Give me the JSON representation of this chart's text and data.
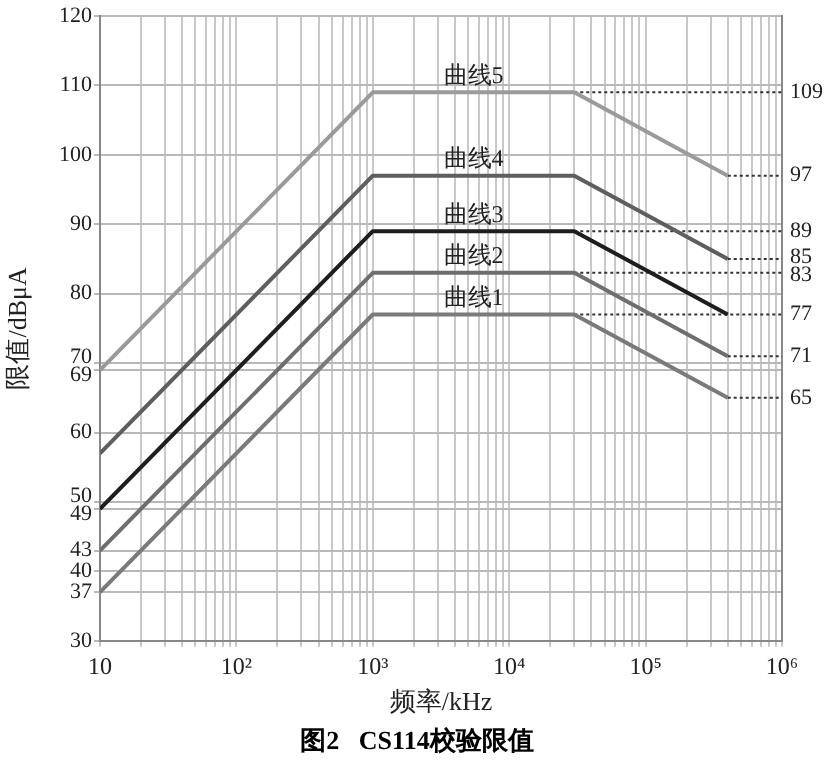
{
  "chart_data": {
    "type": "line",
    "title": "图2   CS114校验限值",
    "xlabel": "频率/kHz",
    "ylabel": "限值/dBμA",
    "log": "x",
    "grid": true,
    "legend": false,
    "marker": "none",
    "line_style": "solid",
    "xlim": [
      10,
      1000000
    ],
    "xticks": [
      10,
      {
        "value": 20,
        "label": null
      },
      {
        "value": 30,
        "label": null
      },
      {
        "value": 40,
        "label": null
      },
      {
        "value": 50,
        "label": null
      },
      {
        "value": 60,
        "label": null
      },
      {
        "value": 70,
        "label": null
      },
      {
        "value": 80,
        "label": null
      },
      {
        "value": 90,
        "label": null
      },
      {
        "value": 100,
        "label": "10²"
      },
      {
        "value": 200,
        "label": null
      },
      {
        "value": 300,
        "label": null
      },
      {
        "value": 400,
        "label": null
      },
      {
        "value": 500,
        "label": null
      },
      {
        "value": 600,
        "label": null
      },
      {
        "value": 700,
        "label": null
      },
      {
        "value": 800,
        "label": null
      },
      {
        "value": 900,
        "label": null
      },
      {
        "value": 1000,
        "label": "10³"
      },
      {
        "value": 2000,
        "label": null
      },
      {
        "value": 3000,
        "label": null
      },
      {
        "value": 4000,
        "label": null
      },
      {
        "value": 5000,
        "label": null
      },
      {
        "value": 6000,
        "label": null
      },
      {
        "value": 7000,
        "label": null
      },
      {
        "value": 8000,
        "label": null
      },
      {
        "value": 9000,
        "label": null
      },
      {
        "value": 10000,
        "label": "10⁴"
      },
      {
        "value": 20000,
        "label": null
      },
      {
        "value": 30000,
        "label": null
      },
      {
        "value": 40000,
        "label": null
      },
      {
        "value": 50000,
        "label": null
      },
      {
        "value": 60000,
        "label": null
      },
      {
        "value": 70000,
        "label": null
      },
      {
        "value": 80000,
        "label": null
      },
      {
        "value": 90000,
        "label": null
      },
      {
        "value": 100000,
        "label": "10⁵"
      },
      {
        "value": 200000,
        "label": null
      },
      {
        "value": 300000,
        "label": null
      },
      {
        "value": 400000,
        "label": null
      },
      {
        "value": 500000,
        "label": null
      },
      {
        "value": 600000,
        "label": null
      },
      {
        "value": 700000,
        "label": null
      },
      {
        "value": 800000,
        "label": null
      },
      {
        "value": 900000,
        "label": null
      },
      {
        "value": 1000000,
        "label": "10⁶"
      }
    ],
    "ylim": [
      30,
      120
    ],
    "yticks": [
      30,
      37,
      40,
      43,
      49,
      50,
      60,
      69,
      70,
      80,
      90,
      100,
      110,
      120
    ],
    "y2lim": [
      30,
      120
    ],
    "y2ticks": [
      65,
      71,
      77,
      83,
      85,
      89,
      97,
      109
    ],
    "series": [
      {
        "name": "曲线5",
        "color": "#9a9a9a",
        "x": [
          10,
          1000,
          30000,
          400000
        ],
        "values": [
          69,
          109,
          109,
          97
        ]
      },
      {
        "name": "曲线4",
        "color": "#5e5e5e",
        "x": [
          10,
          1000,
          30000,
          400000
        ],
        "values": [
          57,
          97,
          97,
          85
        ]
      },
      {
        "name": "曲线3",
        "color": "#1e1e1e",
        "x": [
          10,
          1000,
          30000,
          400000
        ],
        "values": [
          49,
          89,
          89,
          77
        ]
      },
      {
        "name": "曲线2",
        "color": "#6e6e6e",
        "x": [
          10,
          1000,
          30000,
          400000
        ],
        "values": [
          43,
          83,
          83,
          71
        ]
      },
      {
        "name": "曲线1",
        "color": "#7a7a7a",
        "x": [
          10,
          1000,
          30000,
          400000
        ],
        "values": [
          37,
          77,
          77,
          65
        ]
      },
      {
        "color": "#333333",
        "line_style": "dotted",
        "x": [
          30000,
          1000000
        ],
        "values": [
          109,
          109
        ]
      },
      {
        "color": "#333333",
        "line_style": "dotted",
        "x": [
          400000,
          1000000
        ],
        "values": [
          97,
          97
        ]
      },
      {
        "color": "#333333",
        "line_style": "dotted",
        "x": [
          30000,
          1000000
        ],
        "values": [
          89,
          89
        ]
      },
      {
        "color": "#333333",
        "line_style": "dotted",
        "x": [
          400000,
          1000000
        ],
        "values": [
          85,
          85
        ]
      },
      {
        "color": "#333333",
        "line_style": "dotted",
        "x": [
          30000,
          1000000
        ],
        "values": [
          83,
          83
        ]
      },
      {
        "color": "#333333",
        "line_style": "dotted",
        "x": [
          30000,
          1000000
        ],
        "values": [
          77,
          77
        ]
      },
      {
        "color": "#333333",
        "line_style": "dotted",
        "x": [
          400000,
          1000000
        ],
        "values": [
          71,
          71
        ]
      },
      {
        "color": "#333333",
        "line_style": "dotted",
        "x": [
          400000,
          1000000
        ],
        "values": [
          65,
          65
        ]
      }
    ]
  }
}
